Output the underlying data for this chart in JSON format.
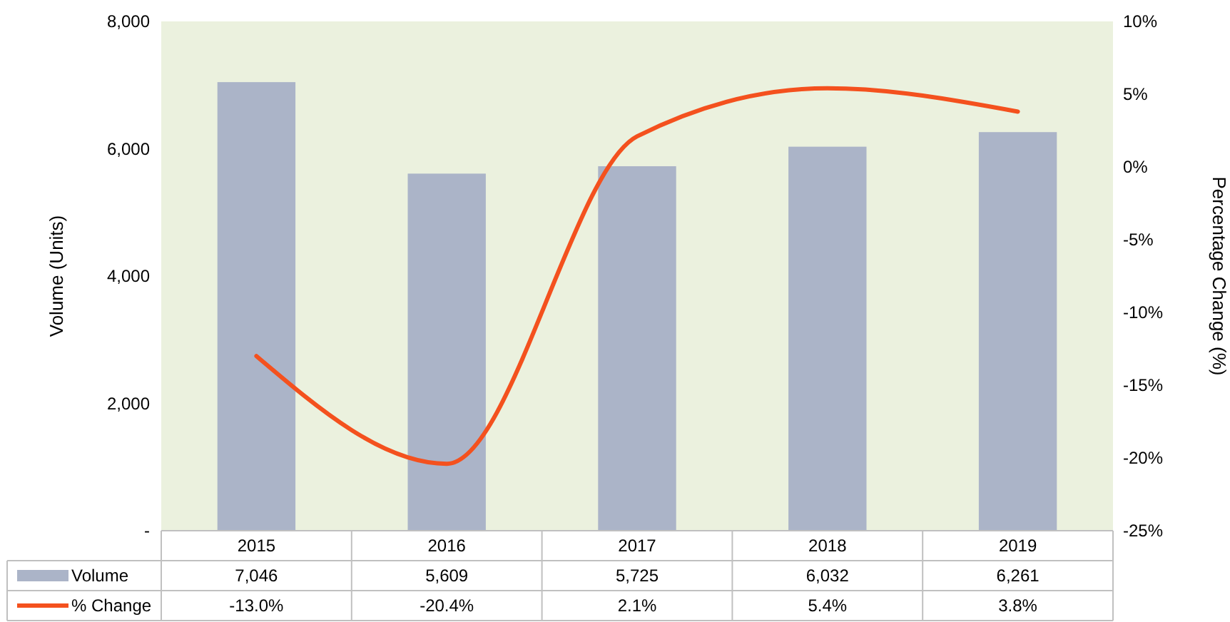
{
  "chart_data": {
    "type": "bar",
    "categories": [
      "2015",
      "2016",
      "2017",
      "2018",
      "2019"
    ],
    "series": [
      {
        "name": "Volume",
        "color": "#abb4c8",
        "values": [
          7046,
          5609,
          5725,
          6032,
          6261
        ],
        "value_labels": [
          "7,046",
          "5,609",
          "5,725",
          "6,032",
          "6,261"
        ]
      },
      {
        "name": "% Change",
        "type": "line",
        "axis": "y2",
        "color": "#f4511e",
        "values": [
          -13.0,
          -20.4,
          2.1,
          5.4,
          3.8
        ],
        "value_labels": [
          "-13.0%",
          "-20.4%",
          "2.1%",
          "5.4%",
          "3.8%"
        ]
      }
    ],
    "ylabel": "Volume (Units)",
    "y2label": "Percentage Change (%)",
    "ylim": [
      0,
      8000
    ],
    "yticks": [
      {
        "value": 0,
        "label": "-"
      },
      {
        "value": 2000,
        "label": "2,000"
      },
      {
        "value": 4000,
        "label": "4,000"
      },
      {
        "value": 6000,
        "label": "6,000"
      },
      {
        "value": 8000,
        "label": "8,000"
      }
    ],
    "y2lim": [
      -25,
      10
    ],
    "y2ticks": [
      {
        "value": -25,
        "label": "-25%"
      },
      {
        "value": -20,
        "label": "-20%"
      },
      {
        "value": -15,
        "label": "-15%"
      },
      {
        "value": -10,
        "label": "-10%"
      },
      {
        "value": -5,
        "label": "-5%"
      },
      {
        "value": 0,
        "label": "0%"
      },
      {
        "value": 5,
        "label": "5%"
      },
      {
        "value": 10,
        "label": "10%"
      }
    ],
    "legend": "bottom"
  }
}
